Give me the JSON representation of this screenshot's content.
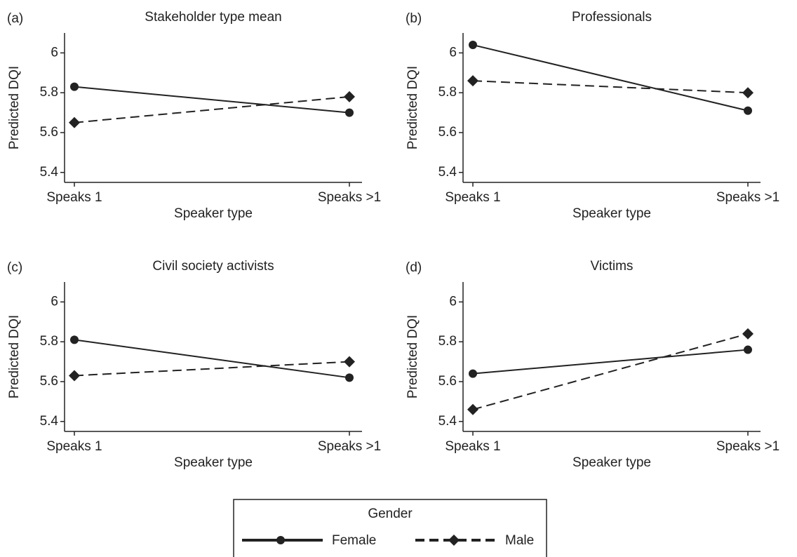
{
  "chart_data": [
    {
      "type": "line",
      "label": "(a)",
      "title": "Stakeholder type mean",
      "xlabel": "Speaker type",
      "ylabel": "Predicted DQI",
      "categories": [
        "Speaks 1",
        "Speaks >1"
      ],
      "ylim": [
        5.35,
        6.1
      ],
      "yticks": [
        5.4,
        5.6,
        5.8,
        6
      ],
      "series": [
        {
          "values": [
            5.83,
            5.7
          ]
        },
        {
          "values": [
            5.65,
            5.78
          ]
        }
      ]
    },
    {
      "type": "line",
      "label": "(b)",
      "title": "Professionals",
      "xlabel": "Speaker type",
      "ylabel": "Predicted DQI",
      "categories": [
        "Speaks 1",
        "Speaks >1"
      ],
      "ylim": [
        5.35,
        6.1
      ],
      "yticks": [
        5.4,
        5.6,
        5.8,
        6
      ],
      "series": [
        {
          "values": [
            6.04,
            5.71
          ]
        },
        {
          "values": [
            5.86,
            5.8
          ]
        }
      ]
    },
    {
      "type": "line",
      "label": "(c)",
      "title": "Civil society activists",
      "xlabel": "Speaker type",
      "ylabel": "Predicted DQI",
      "categories": [
        "Speaks 1",
        "Speaks >1"
      ],
      "ylim": [
        5.35,
        6.1
      ],
      "yticks": [
        5.4,
        5.6,
        5.8,
        6
      ],
      "series": [
        {
          "values": [
            5.81,
            5.62
          ]
        },
        {
          "values": [
            5.63,
            5.7
          ]
        }
      ]
    },
    {
      "type": "line",
      "label": "(d)",
      "title": "Victims",
      "xlabel": "Speaker type",
      "ylabel": "Predicted DQI",
      "categories": [
        "Speaks 1",
        "Speaks >1"
      ],
      "ylim": [
        5.35,
        6.1
      ],
      "yticks": [
        5.4,
        5.6,
        5.8,
        6
      ],
      "series": [
        {
          "values": [
            5.64,
            5.76
          ]
        },
        {
          "values": [
            5.46,
            5.84
          ]
        }
      ]
    }
  ],
  "legend": {
    "title": "Gender",
    "color": "#222222",
    "series": [
      {
        "name": "Female",
        "dash": "solid",
        "marker": "circle"
      },
      {
        "name": "Male",
        "dash": "dashed",
        "marker": "diamond"
      }
    ]
  }
}
